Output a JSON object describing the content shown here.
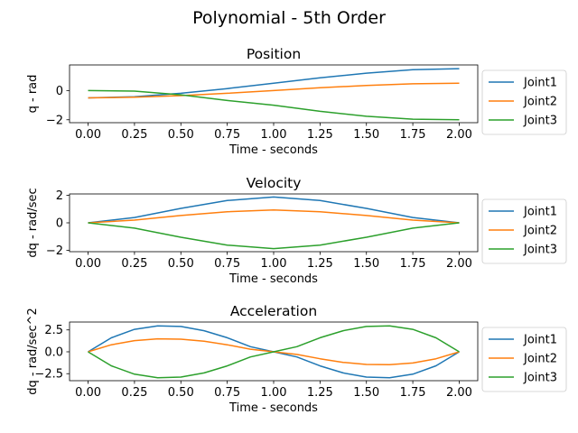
{
  "suptitle": "Polynomial - 5th Order",
  "colors": [
    "#1f77b4",
    "#ff7f0e",
    "#2ca02c"
  ],
  "chart_data": [
    {
      "type": "line",
      "title": "Position",
      "xlabel": "Time - seconds",
      "ylabel": "q - rad",
      "xlim": [
        -0.1,
        2.1
      ],
      "ylim": [
        -2.2,
        1.75
      ],
      "xticks": [
        0.0,
        0.25,
        0.5,
        0.75,
        1.0,
        1.25,
        1.5,
        1.75,
        2.0
      ],
      "xtick_labels": [
        "0.00",
        "0.25",
        "0.50",
        "0.75",
        "1.00",
        "1.25",
        "1.50",
        "1.75",
        "2.00"
      ],
      "yticks": [
        -2,
        0
      ],
      "ytick_labels": [
        "−2",
        "0"
      ],
      "legend": "outside-right",
      "x": [
        0,
        0.25,
        0.5,
        0.75,
        1.0,
        1.25,
        1.5,
        1.75,
        2.0
      ],
      "series": [
        {
          "name": "Joint1",
          "values": [
            -0.5,
            -0.42,
            -0.19,
            0.13,
            0.5,
            0.87,
            1.19,
            1.42,
            1.5
          ]
        },
        {
          "name": "Joint2",
          "values": [
            -0.5,
            -0.46,
            -0.35,
            -0.19,
            0.0,
            0.19,
            0.35,
            0.46,
            0.5
          ]
        },
        {
          "name": "Joint3",
          "values": [
            0.0,
            -0.04,
            -0.29,
            -0.68,
            -1.0,
            -1.42,
            -1.76,
            -1.96,
            -2.0
          ]
        }
      ]
    },
    {
      "type": "line",
      "title": "Velocity",
      "xlabel": "Time - seconds",
      "ylabel": "dq - rad/sec",
      "xlim": [
        -0.1,
        2.1
      ],
      "ylim": [
        -2.1,
        2.1
      ],
      "xticks": [
        0.0,
        0.25,
        0.5,
        0.75,
        1.0,
        1.25,
        1.5,
        1.75,
        2.0
      ],
      "xtick_labels": [
        "0.00",
        "0.25",
        "0.50",
        "0.75",
        "1.00",
        "1.25",
        "1.50",
        "1.75",
        "2.00"
      ],
      "yticks": [
        -2,
        0,
        2
      ],
      "ytick_labels": [
        "−2",
        "0",
        "2"
      ],
      "legend": "outside-right",
      "x": [
        0,
        0.25,
        0.5,
        0.75,
        1.0,
        1.25,
        1.5,
        1.75,
        2.0
      ],
      "series": [
        {
          "name": "Joint1",
          "values": [
            0.0,
            0.39,
            1.05,
            1.62,
            1.88,
            1.62,
            1.05,
            0.39,
            0.0
          ]
        },
        {
          "name": "Joint2",
          "values": [
            0.0,
            0.2,
            0.53,
            0.81,
            0.94,
            0.81,
            0.53,
            0.2,
            0.0
          ]
        },
        {
          "name": "Joint3",
          "values": [
            0.0,
            -0.39,
            -1.05,
            -1.62,
            -1.88,
            -1.62,
            -1.05,
            -0.39,
            0.0
          ]
        }
      ]
    },
    {
      "type": "line",
      "title": "Acceleration",
      "xlabel": "Time - seconds",
      "ylabel": "dq - rad/sec^2",
      "xlim": [
        -0.1,
        2.1
      ],
      "ylim": [
        -3.3,
        3.4
      ],
      "xticks": [
        0.0,
        0.25,
        0.5,
        0.75,
        1.0,
        1.25,
        1.5,
        1.75,
        2.0
      ],
      "xtick_labels": [
        "0.00",
        "0.25",
        "0.50",
        "0.75",
        "1.00",
        "1.25",
        "1.50",
        "1.75",
        "2.00"
      ],
      "yticks": [
        -2.5,
        0.0,
        2.5
      ],
      "ytick_labels": [
        "−2.5",
        "0.0",
        "2.5"
      ],
      "legend": "outside-right",
      "x": [
        0,
        0.125,
        0.25,
        0.375,
        0.5,
        0.625,
        0.75,
        0.875,
        1.0,
        1.125,
        1.25,
        1.375,
        1.5,
        1.625,
        1.75,
        1.875,
        2.0
      ],
      "series": [
        {
          "name": "Joint1",
          "values": [
            0.0,
            1.6,
            2.56,
            2.97,
            2.89,
            2.41,
            1.61,
            0.59,
            0.0,
            -0.59,
            -1.61,
            -2.41,
            -2.89,
            -2.97,
            -2.56,
            -1.6,
            0.0
          ]
        },
        {
          "name": "Joint2",
          "values": [
            0.0,
            0.8,
            1.28,
            1.48,
            1.44,
            1.21,
            0.8,
            0.3,
            0.0,
            -0.3,
            -0.8,
            -1.21,
            -1.44,
            -1.48,
            -1.28,
            -0.8,
            0.0
          ]
        },
        {
          "name": "Joint3",
          "values": [
            0.0,
            -1.6,
            -2.56,
            -2.97,
            -2.89,
            -2.41,
            -1.61,
            -0.59,
            0.0,
            0.59,
            1.61,
            2.41,
            2.89,
            2.97,
            2.56,
            1.6,
            0.0
          ]
        }
      ]
    }
  ]
}
